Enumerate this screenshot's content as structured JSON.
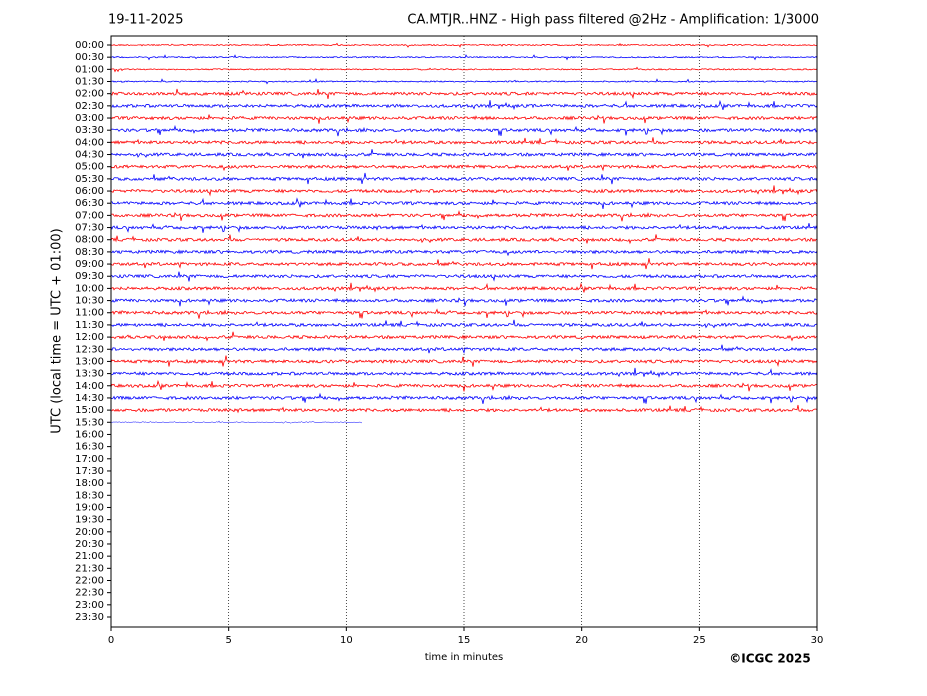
{
  "chart_data": {
    "type": "helicorder",
    "date": "19-11-2025",
    "title": "CA.MTJR..HNZ - High pass filtered @2Hz - Amplification: 1/3000",
    "xlabel": "time in minutes",
    "ylabel": "UTC (local time = UTC + 01:00)",
    "copyright": "©ICGC 2025",
    "xlim": [
      0,
      30
    ],
    "xticks": [
      0,
      5,
      10,
      15,
      20,
      25,
      30
    ],
    "grid": true,
    "colors": [
      "#ff0000",
      "#0000ff"
    ],
    "categories": [
      "00:00",
      "00:30",
      "01:00",
      "01:30",
      "02:00",
      "02:30",
      "03:00",
      "03:30",
      "04:00",
      "04:30",
      "05:00",
      "05:30",
      "06:00",
      "06:30",
      "07:00",
      "07:30",
      "08:00",
      "08:30",
      "09:00",
      "09:30",
      "10:00",
      "10:30",
      "11:00",
      "11:30",
      "12:00",
      "12:30",
      "13:00",
      "13:30",
      "14:00",
      "14:30",
      "15:00",
      "15:30",
      "16:00",
      "16:30",
      "17:00",
      "17:30",
      "18:00",
      "18:30",
      "19:00",
      "19:30",
      "20:00",
      "20:30",
      "21:00",
      "21:30",
      "22:00",
      "22:30",
      "23:00",
      "23:30"
    ],
    "values": [
      30,
      30,
      30,
      30,
      30,
      30,
      30,
      30,
      30,
      30,
      30,
      30,
      30,
      30,
      30,
      30,
      30,
      30,
      30,
      30,
      30,
      30,
      30,
      30,
      30,
      30,
      30,
      30,
      30,
      30,
      30,
      10.7,
      null,
      null,
      null,
      null,
      null,
      null,
      null,
      null,
      null,
      null,
      null,
      null,
      null,
      null,
      null,
      null
    ]
  }
}
